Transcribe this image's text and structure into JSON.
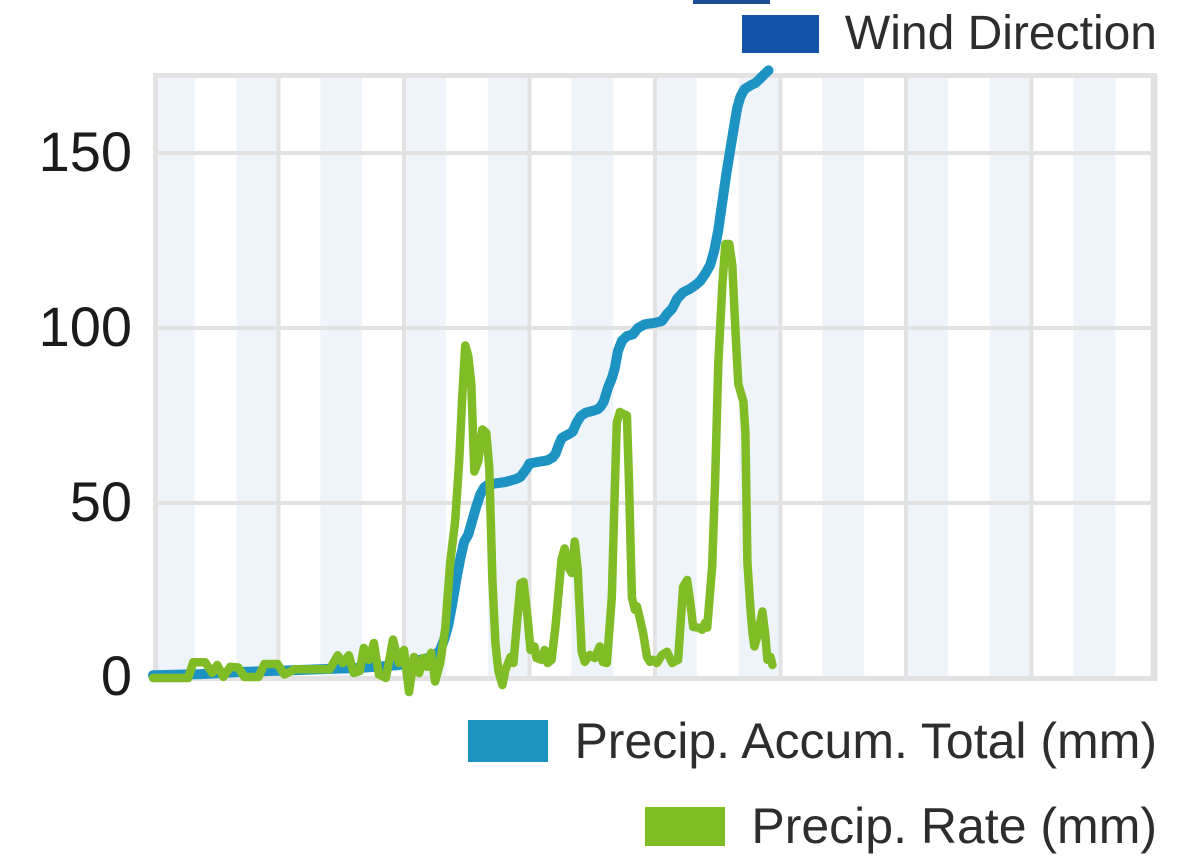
{
  "legend_top": {
    "label": "Wind Direction",
    "color": "#1254a5"
  },
  "legend_bottom": [
    {
      "label": "Precip. Accum. Total (mm)",
      "color": "#1d93c4"
    },
    {
      "label": "Precip. Rate (mm)",
      "color": "#7fbc26"
    }
  ],
  "artifacts": {
    "top_edge_sliver_color": "#1d4d97"
  },
  "y_axis": {
    "ticks": [
      {
        "label": "150",
        "value": 150
      },
      {
        "label": "100",
        "value": 100
      },
      {
        "label": "50",
        "value": 50
      },
      {
        "label": "0",
        "value": 0
      }
    ]
  },
  "chart_style": {
    "band_color": "#eef4f9",
    "grid_color": "#e2e2e2",
    "border_color": "#e2e2e2",
    "background": "#ffffff"
  },
  "chart_data": {
    "type": "line",
    "title": "",
    "xlabel": "",
    "ylabel": "",
    "x_unit": "percent of plot width (no time labels shown)",
    "y_unit": "mm",
    "ylim": [
      0,
      173
    ],
    "y_ticks": [
      0,
      50,
      100,
      150
    ],
    "grid": "horizontal lines at 50-unit steps, 7 vertical major gridlines, 24 alternating pale-blue minor bands",
    "legend_position": "top-right (Wind Direction), bottom-right (precip series)",
    "series": [
      {
        "name": "Wind Direction",
        "color": "#1254a5",
        "points": []
      },
      {
        "name": "Precip. Accum. Total (mm)",
        "color": "#1d93c4",
        "points": [
          [
            0,
            0.8
          ],
          [
            4.7,
            1.1
          ],
          [
            8.7,
            1.7
          ],
          [
            11.7,
            2
          ],
          [
            14.6,
            2.3
          ],
          [
            17.6,
            2.6
          ],
          [
            20.6,
            2.9
          ],
          [
            23.1,
            3.4
          ],
          [
            24.6,
            3.7
          ],
          [
            25.8,
            4.3
          ],
          [
            26.6,
            5.2
          ],
          [
            27.4,
            5.7
          ],
          [
            28.1,
            6.3
          ],
          [
            28.6,
            8
          ],
          [
            29,
            11
          ],
          [
            29.4,
            15
          ],
          [
            29.8,
            21
          ],
          [
            30.2,
            28
          ],
          [
            30.6,
            34
          ],
          [
            31,
            39
          ],
          [
            31.4,
            41
          ],
          [
            31.8,
            45
          ],
          [
            32.2,
            49
          ],
          [
            32.6,
            52.5
          ],
          [
            33,
            54.5
          ],
          [
            33.4,
            55.3
          ],
          [
            34.1,
            55.6
          ],
          [
            35.1,
            56
          ],
          [
            36.1,
            56.8
          ],
          [
            36.6,
            57.5
          ],
          [
            37,
            59
          ],
          [
            37.3,
            60.2
          ],
          [
            37.5,
            61.3
          ],
          [
            38.3,
            61.7
          ],
          [
            39.3,
            62.2
          ],
          [
            39.8,
            63
          ],
          [
            40.1,
            64.1
          ],
          [
            40.4,
            66.5
          ],
          [
            40.7,
            68.5
          ],
          [
            41.1,
            69.2
          ],
          [
            41.5,
            69.8
          ],
          [
            41.8,
            70.4
          ],
          [
            42.2,
            73
          ],
          [
            42.6,
            74.8
          ],
          [
            43.1,
            75.8
          ],
          [
            43.8,
            76.3
          ],
          [
            44.3,
            76.8
          ],
          [
            44.6,
            77.6
          ],
          [
            44.9,
            79
          ],
          [
            45.3,
            82.8
          ],
          [
            45.7,
            85.6
          ],
          [
            46,
            88.5
          ],
          [
            46.3,
            93.4
          ],
          [
            46.7,
            96.3
          ],
          [
            47.2,
            97.7
          ],
          [
            47.8,
            98.2
          ],
          [
            48.3,
            100
          ],
          [
            49,
            101.1
          ],
          [
            50,
            101.5
          ],
          [
            50.7,
            102
          ],
          [
            51.2,
            104
          ],
          [
            51.7,
            105.5
          ],
          [
            52.2,
            108.3
          ],
          [
            52.8,
            110.2
          ],
          [
            53.5,
            111.2
          ],
          [
            54,
            112.2
          ],
          [
            54.5,
            113.4
          ],
          [
            55,
            115.5
          ],
          [
            55.5,
            118
          ],
          [
            55.9,
            122
          ],
          [
            56.3,
            128
          ],
          [
            56.7,
            136
          ],
          [
            57.1,
            144
          ],
          [
            57.5,
            151
          ],
          [
            57.9,
            158
          ],
          [
            58.2,
            163
          ],
          [
            58.5,
            166
          ],
          [
            58.9,
            168.2
          ],
          [
            59.5,
            169.3
          ],
          [
            60,
            170
          ],
          [
            60.5,
            171.3
          ],
          [
            60.9,
            172.5
          ],
          [
            61.3,
            173.6
          ]
        ]
      },
      {
        "name": "Precip. Rate (mm)",
        "color": "#7fbc26",
        "points": [
          [
            0,
            0
          ],
          [
            3.5,
            0
          ],
          [
            4,
            4.5
          ],
          [
            5.2,
            4.5
          ],
          [
            5.9,
            1.5
          ],
          [
            6.4,
            3.7
          ],
          [
            7,
            0.3
          ],
          [
            7.7,
            3.2
          ],
          [
            8.5,
            3
          ],
          [
            9.1,
            0.3
          ],
          [
            10.5,
            0.3
          ],
          [
            11.1,
            4
          ],
          [
            12.4,
            4
          ],
          [
            13.1,
            1
          ],
          [
            14.1,
            2.5
          ],
          [
            17.6,
            2.5
          ],
          [
            18.4,
            6.5
          ],
          [
            18.9,
            4.3
          ],
          [
            19.5,
            6.5
          ],
          [
            20,
            1.4
          ],
          [
            20.6,
            2
          ],
          [
            21,
            8.6
          ],
          [
            21.5,
            5.2
          ],
          [
            22,
            10
          ],
          [
            22.5,
            1
          ],
          [
            23.2,
            0
          ],
          [
            23.9,
            11
          ],
          [
            24.5,
            4.3
          ],
          [
            25,
            8
          ],
          [
            25.5,
            -4
          ],
          [
            26,
            6
          ],
          [
            26.5,
            1.4
          ],
          [
            26.9,
            5.7
          ],
          [
            27.3,
            3.2
          ],
          [
            27.7,
            7.2
          ],
          [
            28.1,
            -1
          ],
          [
            28.6,
            4.3
          ],
          [
            29.1,
            14
          ],
          [
            29.6,
            33
          ],
          [
            30.1,
            45
          ],
          [
            30.5,
            62
          ],
          [
            30.8,
            80
          ],
          [
            31.1,
            95
          ],
          [
            31.4,
            92
          ],
          [
            31.7,
            84
          ],
          [
            32,
            59
          ],
          [
            32.4,
            62
          ],
          [
            32.8,
            71
          ],
          [
            33.2,
            70
          ],
          [
            33.5,
            60
          ],
          [
            33.8,
            28
          ],
          [
            34.1,
            10
          ],
          [
            34.4,
            2
          ],
          [
            34.8,
            -2
          ],
          [
            35.1,
            2.3
          ],
          [
            35.6,
            6
          ],
          [
            35.9,
            4.3
          ],
          [
            36.6,
            27
          ],
          [
            36.9,
            27.5
          ],
          [
            37.3,
            17.5
          ],
          [
            37.6,
            8
          ],
          [
            38,
            9
          ],
          [
            38.2,
            5.7
          ],
          [
            38.7,
            5.2
          ],
          [
            39,
            8
          ],
          [
            39.3,
            4.3
          ],
          [
            39.7,
            5.2
          ],
          [
            40.1,
            15
          ],
          [
            40.7,
            34
          ],
          [
            41,
            37
          ],
          [
            41.3,
            32
          ],
          [
            41.7,
            30
          ],
          [
            42,
            39
          ],
          [
            42.3,
            31
          ],
          [
            42.7,
            7.5
          ],
          [
            43,
            4.6
          ],
          [
            43.5,
            6.6
          ],
          [
            44,
            5.7
          ],
          [
            44.5,
            9
          ],
          [
            44.8,
            4.6
          ],
          [
            45.2,
            4.3
          ],
          [
            45.7,
            23
          ],
          [
            46,
            54
          ],
          [
            46.2,
            73
          ],
          [
            46.5,
            76
          ],
          [
            47.2,
            75
          ],
          [
            47.4,
            57
          ],
          [
            47.7,
            23
          ],
          [
            48,
            19.5
          ],
          [
            48.2,
            20.5
          ],
          [
            48.5,
            17
          ],
          [
            48.8,
            13
          ],
          [
            49.2,
            6
          ],
          [
            49.5,
            4.6
          ],
          [
            49.8,
            5.2
          ],
          [
            50.2,
            4.3
          ],
          [
            50.7,
            6.6
          ],
          [
            51.2,
            7.5
          ],
          [
            51.7,
            4.3
          ],
          [
            52.3,
            5.2
          ],
          [
            52.8,
            26
          ],
          [
            53.2,
            28
          ],
          [
            53.5,
            22
          ],
          [
            53.8,
            14.6
          ],
          [
            54.3,
            14.4
          ],
          [
            54.7,
            13.8
          ],
          [
            55,
            15.8
          ],
          [
            55.2,
            14.4
          ],
          [
            55.7,
            32
          ],
          [
            56,
            57
          ],
          [
            56.3,
            90
          ],
          [
            56.7,
            112
          ],
          [
            57,
            124
          ],
          [
            57.4,
            124
          ],
          [
            57.7,
            118
          ],
          [
            58,
            100
          ],
          [
            58.3,
            84
          ],
          [
            58.6,
            81
          ],
          [
            58.8,
            79
          ],
          [
            59,
            70
          ],
          [
            59.2,
            33
          ],
          [
            59.5,
            20
          ],
          [
            59.7,
            13
          ],
          [
            59.9,
            9
          ],
          [
            60.3,
            13
          ],
          [
            60.7,
            19
          ],
          [
            61,
            12
          ],
          [
            61.2,
            5.2
          ],
          [
            61.5,
            6
          ],
          [
            61.7,
            3.7
          ]
        ]
      }
    ]
  }
}
